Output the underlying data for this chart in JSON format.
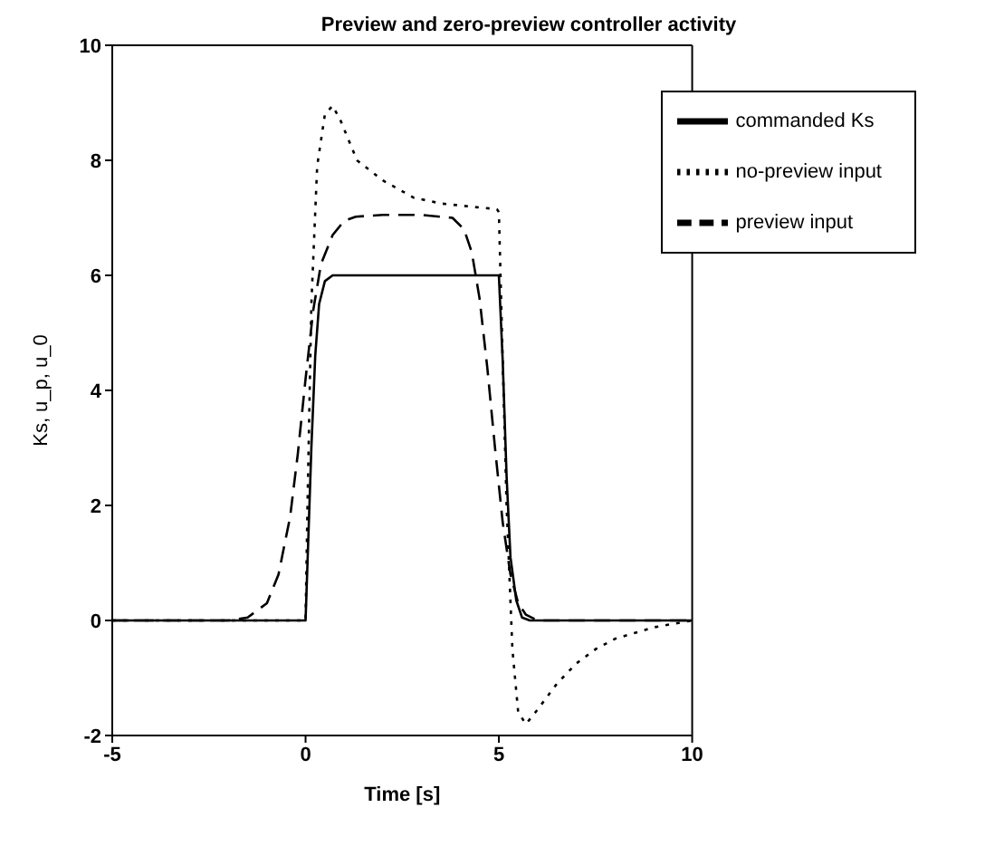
{
  "chart_data": {
    "type": "line",
    "title": "Preview and zero-preview controller activity",
    "xlabel": "Time [s]",
    "ylabel": "Ks, u_p, u_0",
    "xlim": [
      -5,
      10
    ],
    "xticks": [
      -5,
      0,
      5,
      10
    ],
    "ylim": [
      -2,
      10
    ],
    "yticks": [
      -2,
      0,
      2,
      4,
      6,
      8,
      10
    ],
    "legend": "top right",
    "grid": false,
    "series": [
      {
        "name": "commanded Ks",
        "color": "#000000",
        "line_style": "solid",
        "x": [
          -5,
          0,
          0.05,
          0.15,
          0.25,
          0.35,
          0.5,
          0.7,
          1,
          4.95,
          5,
          5.1,
          5.2,
          5.3,
          5.45,
          5.6,
          5.8,
          10
        ],
        "values": [
          0,
          0,
          1,
          3,
          4.6,
          5.5,
          5.9,
          6,
          6,
          6,
          6,
          4.5,
          2.5,
          1.1,
          0.35,
          0.05,
          0,
          0
        ]
      },
      {
        "name": "preview input",
        "color": "#000000",
        "line_style": "dashed",
        "x": [
          -5,
          -2,
          -1.5,
          -1,
          -0.7,
          -0.4,
          -0.2,
          0,
          0.2,
          0.4,
          0.7,
          1,
          1.3,
          2,
          3,
          3.8,
          4.1,
          4.3,
          4.5,
          4.7,
          4.9,
          5.1,
          5.3,
          5.5,
          5.7,
          6,
          10
        ],
        "values": [
          0,
          0,
          0.05,
          0.3,
          0.8,
          1.8,
          2.9,
          4.2,
          5.4,
          6.2,
          6.7,
          6.95,
          7.02,
          7.05,
          7.05,
          7.0,
          6.8,
          6.4,
          5.6,
          4.4,
          3,
          1.7,
          0.8,
          0.3,
          0.1,
          0,
          0
        ]
      },
      {
        "name": "no-preview input",
        "color": "#000000",
        "line_style": "dotted",
        "x": [
          -5,
          0,
          0.05,
          0.15,
          0.3,
          0.5,
          0.7,
          0.9,
          1.33,
          2,
          2.8,
          3.5,
          4.2,
          4.95,
          5,
          5.1,
          5.2,
          5.35,
          5.5,
          5.7,
          6,
          6.5,
          7,
          7.5,
          8,
          9,
          10
        ],
        "values": [
          0,
          0,
          2,
          5.5,
          7.9,
          8.8,
          8.95,
          8.7,
          8.0,
          7.65,
          7.35,
          7.25,
          7.2,
          7.15,
          7.1,
          4.5,
          2,
          -0.5,
          -1.6,
          -1.8,
          -1.55,
          -1.1,
          -0.75,
          -0.5,
          -0.32,
          -0.12,
          0
        ]
      }
    ]
  }
}
